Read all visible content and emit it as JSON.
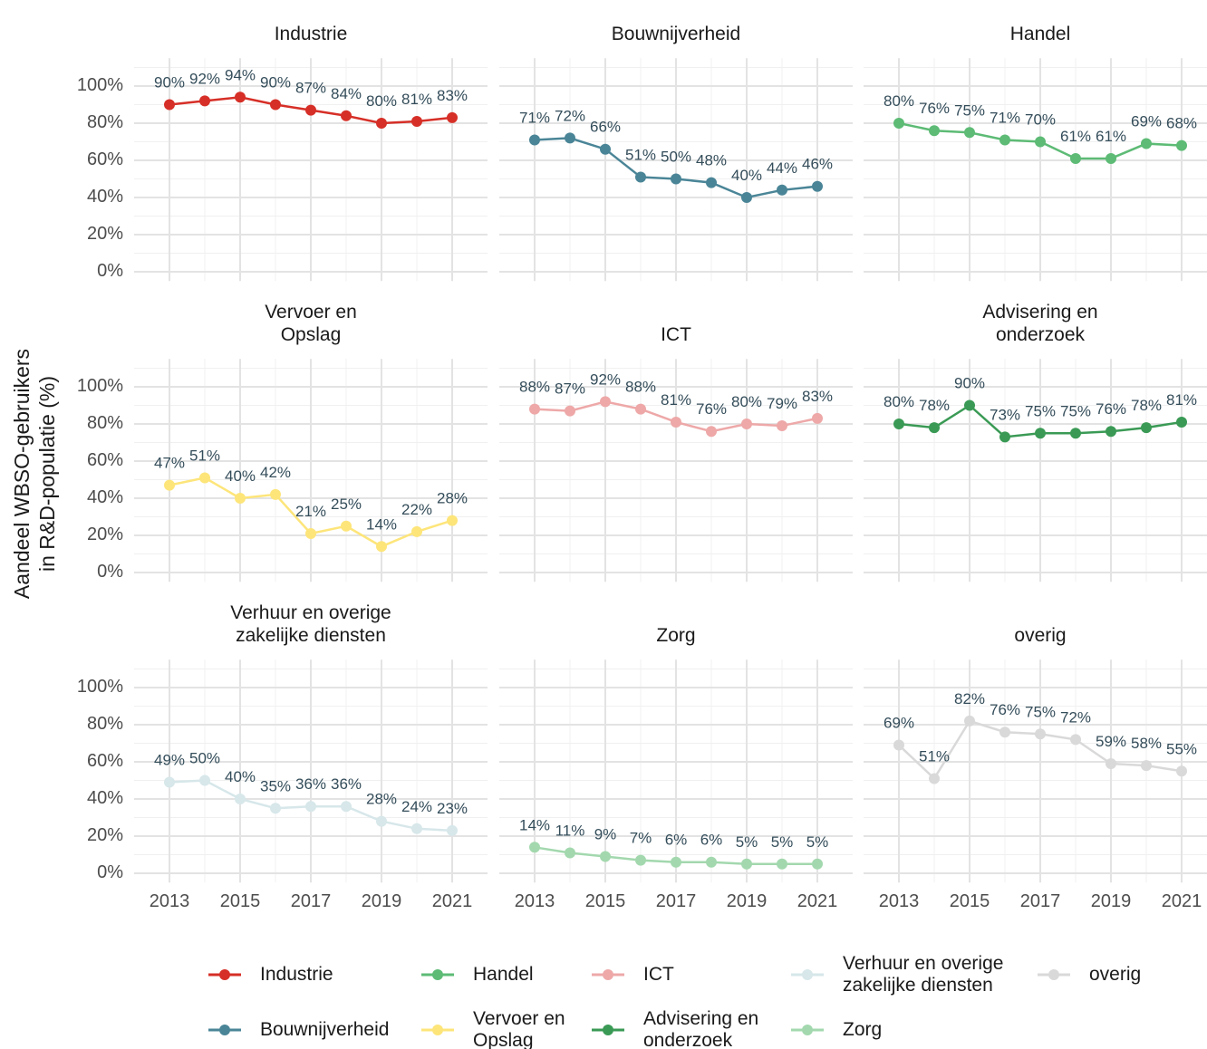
{
  "y_label": "Aandeel WBSO-gebruikers\nin R&D-populatie (%)",
  "chart_data": [
    {
      "type": "line",
      "title": "Industrie",
      "color": "#d62f27",
      "x": [
        2013,
        2014,
        2015,
        2016,
        2017,
        2018,
        2019,
        2020,
        2021
      ],
      "values": [
        90,
        92,
        94,
        90,
        87,
        84,
        80,
        81,
        83
      ],
      "value_labels": [
        "90%",
        "92%",
        "94%",
        "90%",
        "87%",
        "84%",
        "80%",
        "81%",
        "83%"
      ],
      "xlim": [
        2012,
        2022
      ],
      "xticks": [
        2013,
        2015,
        2017,
        2019,
        2021
      ],
      "xticks_minor": [
        2014,
        2016,
        2018,
        2020
      ],
      "ylim": [
        -5,
        115
      ],
      "yticks": [
        {
          "value": 0,
          "label": "0%"
        },
        {
          "value": 20,
          "label": "20%"
        },
        {
          "value": 40,
          "label": "40%"
        },
        {
          "value": 60,
          "label": "60%"
        },
        {
          "value": 80,
          "label": "80%"
        },
        {
          "value": 100,
          "label": "100%"
        }
      ],
      "yticks_minor": [
        10,
        30,
        50,
        70,
        90,
        110
      ],
      "grid": true
    },
    {
      "type": "line",
      "title": "Bouwnijverheid",
      "color": "#4a8597",
      "x": [
        2013,
        2014,
        2015,
        2016,
        2017,
        2018,
        2019,
        2020,
        2021
      ],
      "values": [
        71,
        72,
        66,
        51,
        50,
        48,
        40,
        44,
        46
      ],
      "value_labels": [
        "71%",
        "72%",
        "66%",
        "51%",
        "50%",
        "48%",
        "40%",
        "44%",
        "46%"
      ],
      "xlim": [
        2012,
        2022
      ],
      "xticks": [
        2013,
        2015,
        2017,
        2019,
        2021
      ],
      "xticks_minor": [
        2014,
        2016,
        2018,
        2020
      ],
      "ylim": [
        -5,
        115
      ],
      "yticks": [
        {
          "value": 0,
          "label": "0%"
        },
        {
          "value": 20,
          "label": "20%"
        },
        {
          "value": 40,
          "label": "40%"
        },
        {
          "value": 60,
          "label": "60%"
        },
        {
          "value": 80,
          "label": "80%"
        },
        {
          "value": 100,
          "label": "100%"
        }
      ],
      "yticks_minor": [
        10,
        30,
        50,
        70,
        90,
        110
      ],
      "grid": true
    },
    {
      "type": "line",
      "title": "Handel",
      "color": "#5dbb75",
      "x": [
        2013,
        2014,
        2015,
        2016,
        2017,
        2018,
        2019,
        2020,
        2021
      ],
      "values": [
        80,
        76,
        75,
        71,
        70,
        61,
        61,
        69,
        68
      ],
      "value_labels": [
        "80%",
        "76%",
        "75%",
        "71%",
        "70%",
        "61%",
        "61%",
        "69%",
        "68%"
      ],
      "xlim": [
        2012,
        2022
      ],
      "xticks": [
        2013,
        2015,
        2017,
        2019,
        2021
      ],
      "xticks_minor": [
        2014,
        2016,
        2018,
        2020
      ],
      "ylim": [
        -5,
        115
      ],
      "yticks": [
        {
          "value": 0,
          "label": "0%"
        },
        {
          "value": 20,
          "label": "20%"
        },
        {
          "value": 40,
          "label": "40%"
        },
        {
          "value": 60,
          "label": "60%"
        },
        {
          "value": 80,
          "label": "80%"
        },
        {
          "value": 100,
          "label": "100%"
        }
      ],
      "yticks_minor": [
        10,
        30,
        50,
        70,
        90,
        110
      ],
      "grid": true
    },
    {
      "type": "line",
      "title": "Vervoer en\nOpslag",
      "color": "#fde57a",
      "x": [
        2013,
        2014,
        2015,
        2016,
        2017,
        2018,
        2019,
        2020,
        2021
      ],
      "values": [
        47,
        51,
        40,
        42,
        21,
        25,
        14,
        22,
        28
      ],
      "value_labels": [
        "47%",
        "51%",
        "40%",
        "42%",
        "21%",
        "25%",
        "14%",
        "22%",
        "28%"
      ],
      "xlim": [
        2012,
        2022
      ],
      "xticks": [
        2013,
        2015,
        2017,
        2019,
        2021
      ],
      "xticks_minor": [
        2014,
        2016,
        2018,
        2020
      ],
      "ylim": [
        -5,
        115
      ],
      "yticks": [
        {
          "value": 0,
          "label": "0%"
        },
        {
          "value": 20,
          "label": "20%"
        },
        {
          "value": 40,
          "label": "40%"
        },
        {
          "value": 60,
          "label": "60%"
        },
        {
          "value": 80,
          "label": "80%"
        },
        {
          "value": 100,
          "label": "100%"
        }
      ],
      "yticks_minor": [
        10,
        30,
        50,
        70,
        90,
        110
      ],
      "grid": true
    },
    {
      "type": "line",
      "title": "ICT",
      "color": "#eea8a8",
      "x": [
        2013,
        2014,
        2015,
        2016,
        2017,
        2018,
        2019,
        2020,
        2021
      ],
      "values": [
        88,
        87,
        92,
        88,
        81,
        76,
        80,
        79,
        83
      ],
      "value_labels": [
        "88%",
        "87%",
        "92%",
        "88%",
        "81%",
        "76%",
        "80%",
        "79%",
        "83%"
      ],
      "xlim": [
        2012,
        2022
      ],
      "xticks": [
        2013,
        2015,
        2017,
        2019,
        2021
      ],
      "xticks_minor": [
        2014,
        2016,
        2018,
        2020
      ],
      "ylim": [
        -5,
        115
      ],
      "yticks": [
        {
          "value": 0,
          "label": "0%"
        },
        {
          "value": 20,
          "label": "20%"
        },
        {
          "value": 40,
          "label": "40%"
        },
        {
          "value": 60,
          "label": "60%"
        },
        {
          "value": 80,
          "label": "80%"
        },
        {
          "value": 100,
          "label": "100%"
        }
      ],
      "yticks_minor": [
        10,
        30,
        50,
        70,
        90,
        110
      ],
      "grid": true
    },
    {
      "type": "line",
      "title": "Advisering en\nonderzoek",
      "color": "#3a9a55",
      "x": [
        2013,
        2014,
        2015,
        2016,
        2017,
        2018,
        2019,
        2020,
        2021
      ],
      "values": [
        80,
        78,
        90,
        73,
        75,
        75,
        76,
        78,
        81
      ],
      "value_labels": [
        "80%",
        "78%",
        "90%",
        "73%",
        "75%",
        "75%",
        "76%",
        "78%",
        "81%"
      ],
      "xlim": [
        2012,
        2022
      ],
      "xticks": [
        2013,
        2015,
        2017,
        2019,
        2021
      ],
      "xticks_minor": [
        2014,
        2016,
        2018,
        2020
      ],
      "ylim": [
        -5,
        115
      ],
      "yticks": [
        {
          "value": 0,
          "label": "0%"
        },
        {
          "value": 20,
          "label": "20%"
        },
        {
          "value": 40,
          "label": "40%"
        },
        {
          "value": 60,
          "label": "60%"
        },
        {
          "value": 80,
          "label": "80%"
        },
        {
          "value": 100,
          "label": "100%"
        }
      ],
      "yticks_minor": [
        10,
        30,
        50,
        70,
        90,
        110
      ],
      "grid": true
    },
    {
      "type": "line",
      "title": "Verhuur en overige\nzakelijke diensten",
      "color": "#d7e7ea",
      "x": [
        2013,
        2014,
        2015,
        2016,
        2017,
        2018,
        2019,
        2020,
        2021
      ],
      "values": [
        49,
        50,
        40,
        35,
        36,
        36,
        28,
        24,
        23
      ],
      "value_labels": [
        "49%",
        "50%",
        "40%",
        "35%",
        "36%",
        "36%",
        "28%",
        "24%",
        "23%"
      ],
      "xlim": [
        2012,
        2022
      ],
      "xticks": [
        2013,
        2015,
        2017,
        2019,
        2021
      ],
      "xticks_minor": [
        2014,
        2016,
        2018,
        2020
      ],
      "ylim": [
        -5,
        115
      ],
      "yticks": [
        {
          "value": 0,
          "label": "0%"
        },
        {
          "value": 20,
          "label": "20%"
        },
        {
          "value": 40,
          "label": "40%"
        },
        {
          "value": 60,
          "label": "60%"
        },
        {
          "value": 80,
          "label": "80%"
        },
        {
          "value": 100,
          "label": "100%"
        }
      ],
      "yticks_minor": [
        10,
        30,
        50,
        70,
        90,
        110
      ],
      "grid": true
    },
    {
      "type": "line",
      "title": "Zorg",
      "color": "#a3d8ae",
      "x": [
        2013,
        2014,
        2015,
        2016,
        2017,
        2018,
        2019,
        2020,
        2021
      ],
      "values": [
        14,
        11,
        9,
        7,
        6,
        6,
        5,
        5,
        5
      ],
      "value_labels": [
        "14%",
        "11%",
        "9%",
        "7%",
        "6%",
        "6%",
        "5%",
        "5%",
        "5%"
      ],
      "xlim": [
        2012,
        2022
      ],
      "xticks": [
        2013,
        2015,
        2017,
        2019,
        2021
      ],
      "xticks_minor": [
        2014,
        2016,
        2018,
        2020
      ],
      "ylim": [
        -5,
        115
      ],
      "yticks": [
        {
          "value": 0,
          "label": "0%"
        },
        {
          "value": 20,
          "label": "20%"
        },
        {
          "value": 40,
          "label": "40%"
        },
        {
          "value": 60,
          "label": "60%"
        },
        {
          "value": 80,
          "label": "80%"
        },
        {
          "value": 100,
          "label": "100%"
        }
      ],
      "yticks_minor": [
        10,
        30,
        50,
        70,
        90,
        110
      ],
      "grid": true
    },
    {
      "type": "line",
      "title": "overig",
      "color": "#d9d9d9",
      "x": [
        2013,
        2014,
        2015,
        2016,
        2017,
        2018,
        2019,
        2020,
        2021
      ],
      "values": [
        69,
        51,
        82,
        76,
        75,
        72,
        59,
        58,
        55
      ],
      "value_labels": [
        "69%",
        "51%",
        "82%",
        "76%",
        "75%",
        "72%",
        "59%",
        "58%",
        "55%"
      ],
      "xlim": [
        2012,
        2022
      ],
      "xticks": [
        2013,
        2015,
        2017,
        2019,
        2021
      ],
      "xticks_minor": [
        2014,
        2016,
        2018,
        2020
      ],
      "ylim": [
        -5,
        115
      ],
      "yticks": [
        {
          "value": 0,
          "label": "0%"
        },
        {
          "value": 20,
          "label": "20%"
        },
        {
          "value": 40,
          "label": "40%"
        },
        {
          "value": 60,
          "label": "60%"
        },
        {
          "value": 80,
          "label": "80%"
        },
        {
          "value": 100,
          "label": "100%"
        }
      ],
      "yticks_minor": [
        10,
        30,
        50,
        70,
        90,
        110
      ],
      "grid": true
    }
  ]
}
